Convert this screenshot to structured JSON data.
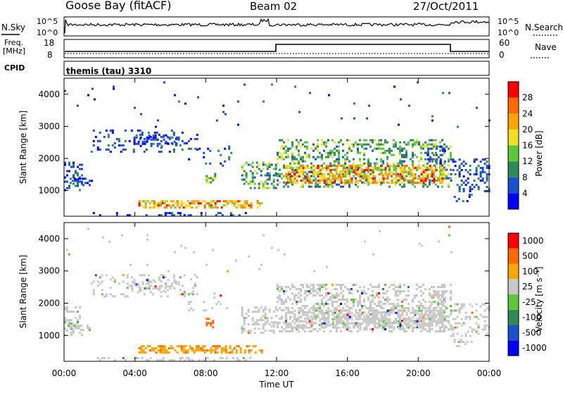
{
  "header": {
    "station": "Goose Bay (fitACF)",
    "beam": "Beam 02",
    "date": "27/Oct/2011"
  },
  "top_panel": {
    "nsky_label": "N.Sky",
    "nsearch_label": "N.Search",
    "y_ticks_left": [
      "10^5",
      "10^0"
    ],
    "y_ticks_right": [
      "10^5",
      "10^0"
    ]
  },
  "freq_panel": {
    "freq_label_1": "Freq.",
    "freq_label_2": "[MHz]",
    "nave_label": "Nave",
    "freq_ticks": [
      "18",
      "8"
    ],
    "nave_ticks": [
      "60",
      "0"
    ],
    "cpid_label": "CPID",
    "cpid_value": "themis (tau) 3310"
  },
  "chart_data": [
    {
      "type": "heatmap",
      "ylabel": "Slant Range [km]",
      "y_ticks": [
        "4000",
        "3000",
        "2000",
        "1000"
      ],
      "ylim": [
        200,
        4500
      ],
      "x_ticks": [
        "00:00",
        "04:00",
        "08:00",
        "12:00",
        "16:00",
        "20:00",
        "00:00"
      ],
      "colorbar_label": "Power [dB]",
      "colorbar_ticks": [
        "28",
        "24",
        "20",
        "16",
        "12",
        "8",
        "4"
      ],
      "colors": [
        "#0000ff",
        "#1a4fd0",
        "#2e8b57",
        "#5cc83a",
        "#f0e020",
        "#ffa500",
        "#ff6a00",
        "#ff0000"
      ]
    },
    {
      "type": "heatmap",
      "ylabel": "Slant Range [km]",
      "y_ticks": [
        "4000",
        "3000",
        "2000",
        "1000"
      ],
      "ylim": [
        200,
        4500
      ],
      "x_ticks": [
        "00:00",
        "04:00",
        "08:00",
        "12:00",
        "16:00",
        "20:00",
        "00:00"
      ],
      "xlabel": "Time UT",
      "colorbar_label": "Velocity [m s⁻¹]",
      "colorbar_ticks": [
        "1000",
        "500",
        "100",
        "25",
        "-25",
        "-100",
        "-500",
        "-1000"
      ],
      "colors": [
        "#0000ff",
        "#1a4fd0",
        "#2e8b57",
        "#5cc83a",
        "#c8c8c8",
        "#ffa500",
        "#ff6a00",
        "#ff0000"
      ]
    }
  ]
}
